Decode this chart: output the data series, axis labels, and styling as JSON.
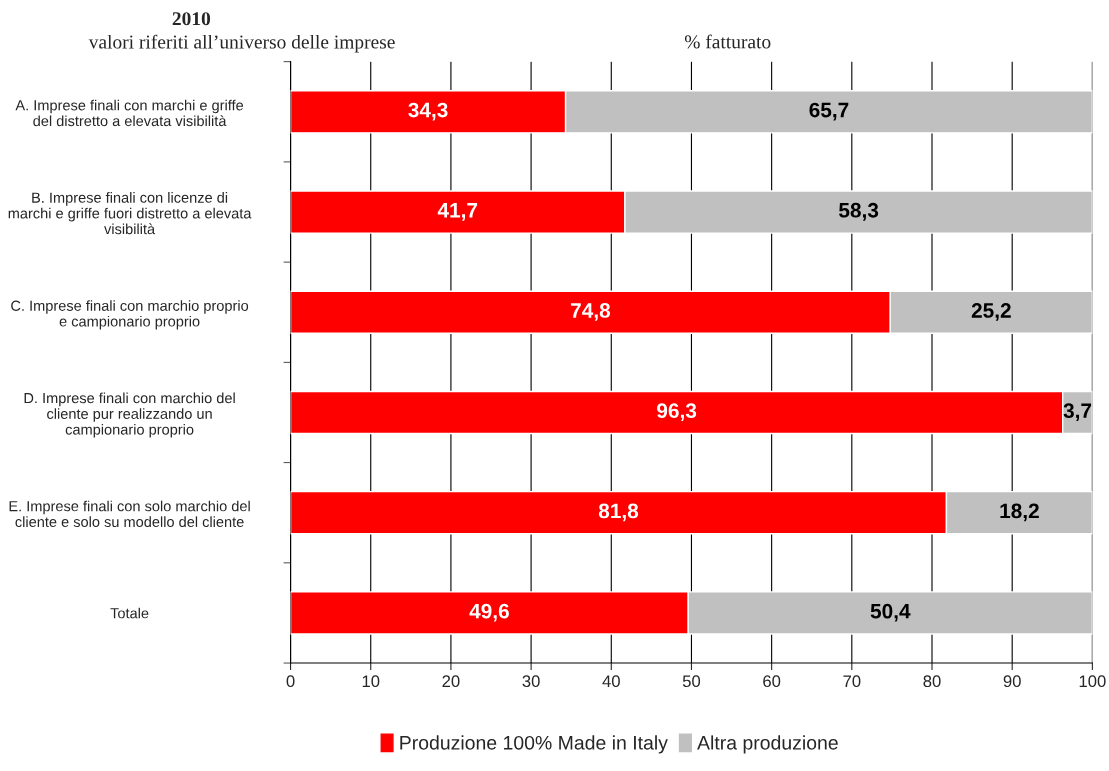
{
  "chart_data": {
    "type": "bar",
    "orientation": "horizontal",
    "stacked": true,
    "title": "2010",
    "subtitle": "valori riferiti all’universo delle imprese",
    "annotations": [
      "% fatturato"
    ],
    "categories": [
      "A. Imprese finali con marchi e griffe\ndel distretto a elevata visibilità",
      "B. Imprese finali con licenze di\nmarchi e griffe fuori distretto a elevata\nvisibilità",
      "C. Imprese finali con marchio proprio\ne campionario proprio",
      "D. Imprese finali con marchio del\ncliente pur realizzando un\ncampionario proprio",
      "E. Imprese finali con solo marchio del\ncliente e solo su modello del cliente",
      "Totale"
    ],
    "series": [
      {
        "name": "Produzione 100% Made in Italy",
        "color": "#ff0000",
        "values": [
          34.3,
          41.7,
          74.8,
          96.3,
          81.8,
          49.6
        ],
        "value_labels": [
          "34,3",
          "41,7",
          "74,8",
          "96,3",
          "81,8",
          "49,6"
        ]
      },
      {
        "name": "Altra produzione",
        "color": "#c0c0c0",
        "values": [
          65.7,
          58.3,
          25.2,
          3.7,
          18.2,
          50.4
        ],
        "value_labels": [
          "65,7",
          "58,3",
          "25,2",
          "3,7",
          "18,2",
          "50,4"
        ]
      }
    ],
    "xlim": [
      0,
      100
    ],
    "xticks": [
      0,
      10,
      20,
      30,
      40,
      50,
      60,
      70,
      80,
      90,
      100
    ],
    "grid": "x",
    "legend": "bottom"
  }
}
